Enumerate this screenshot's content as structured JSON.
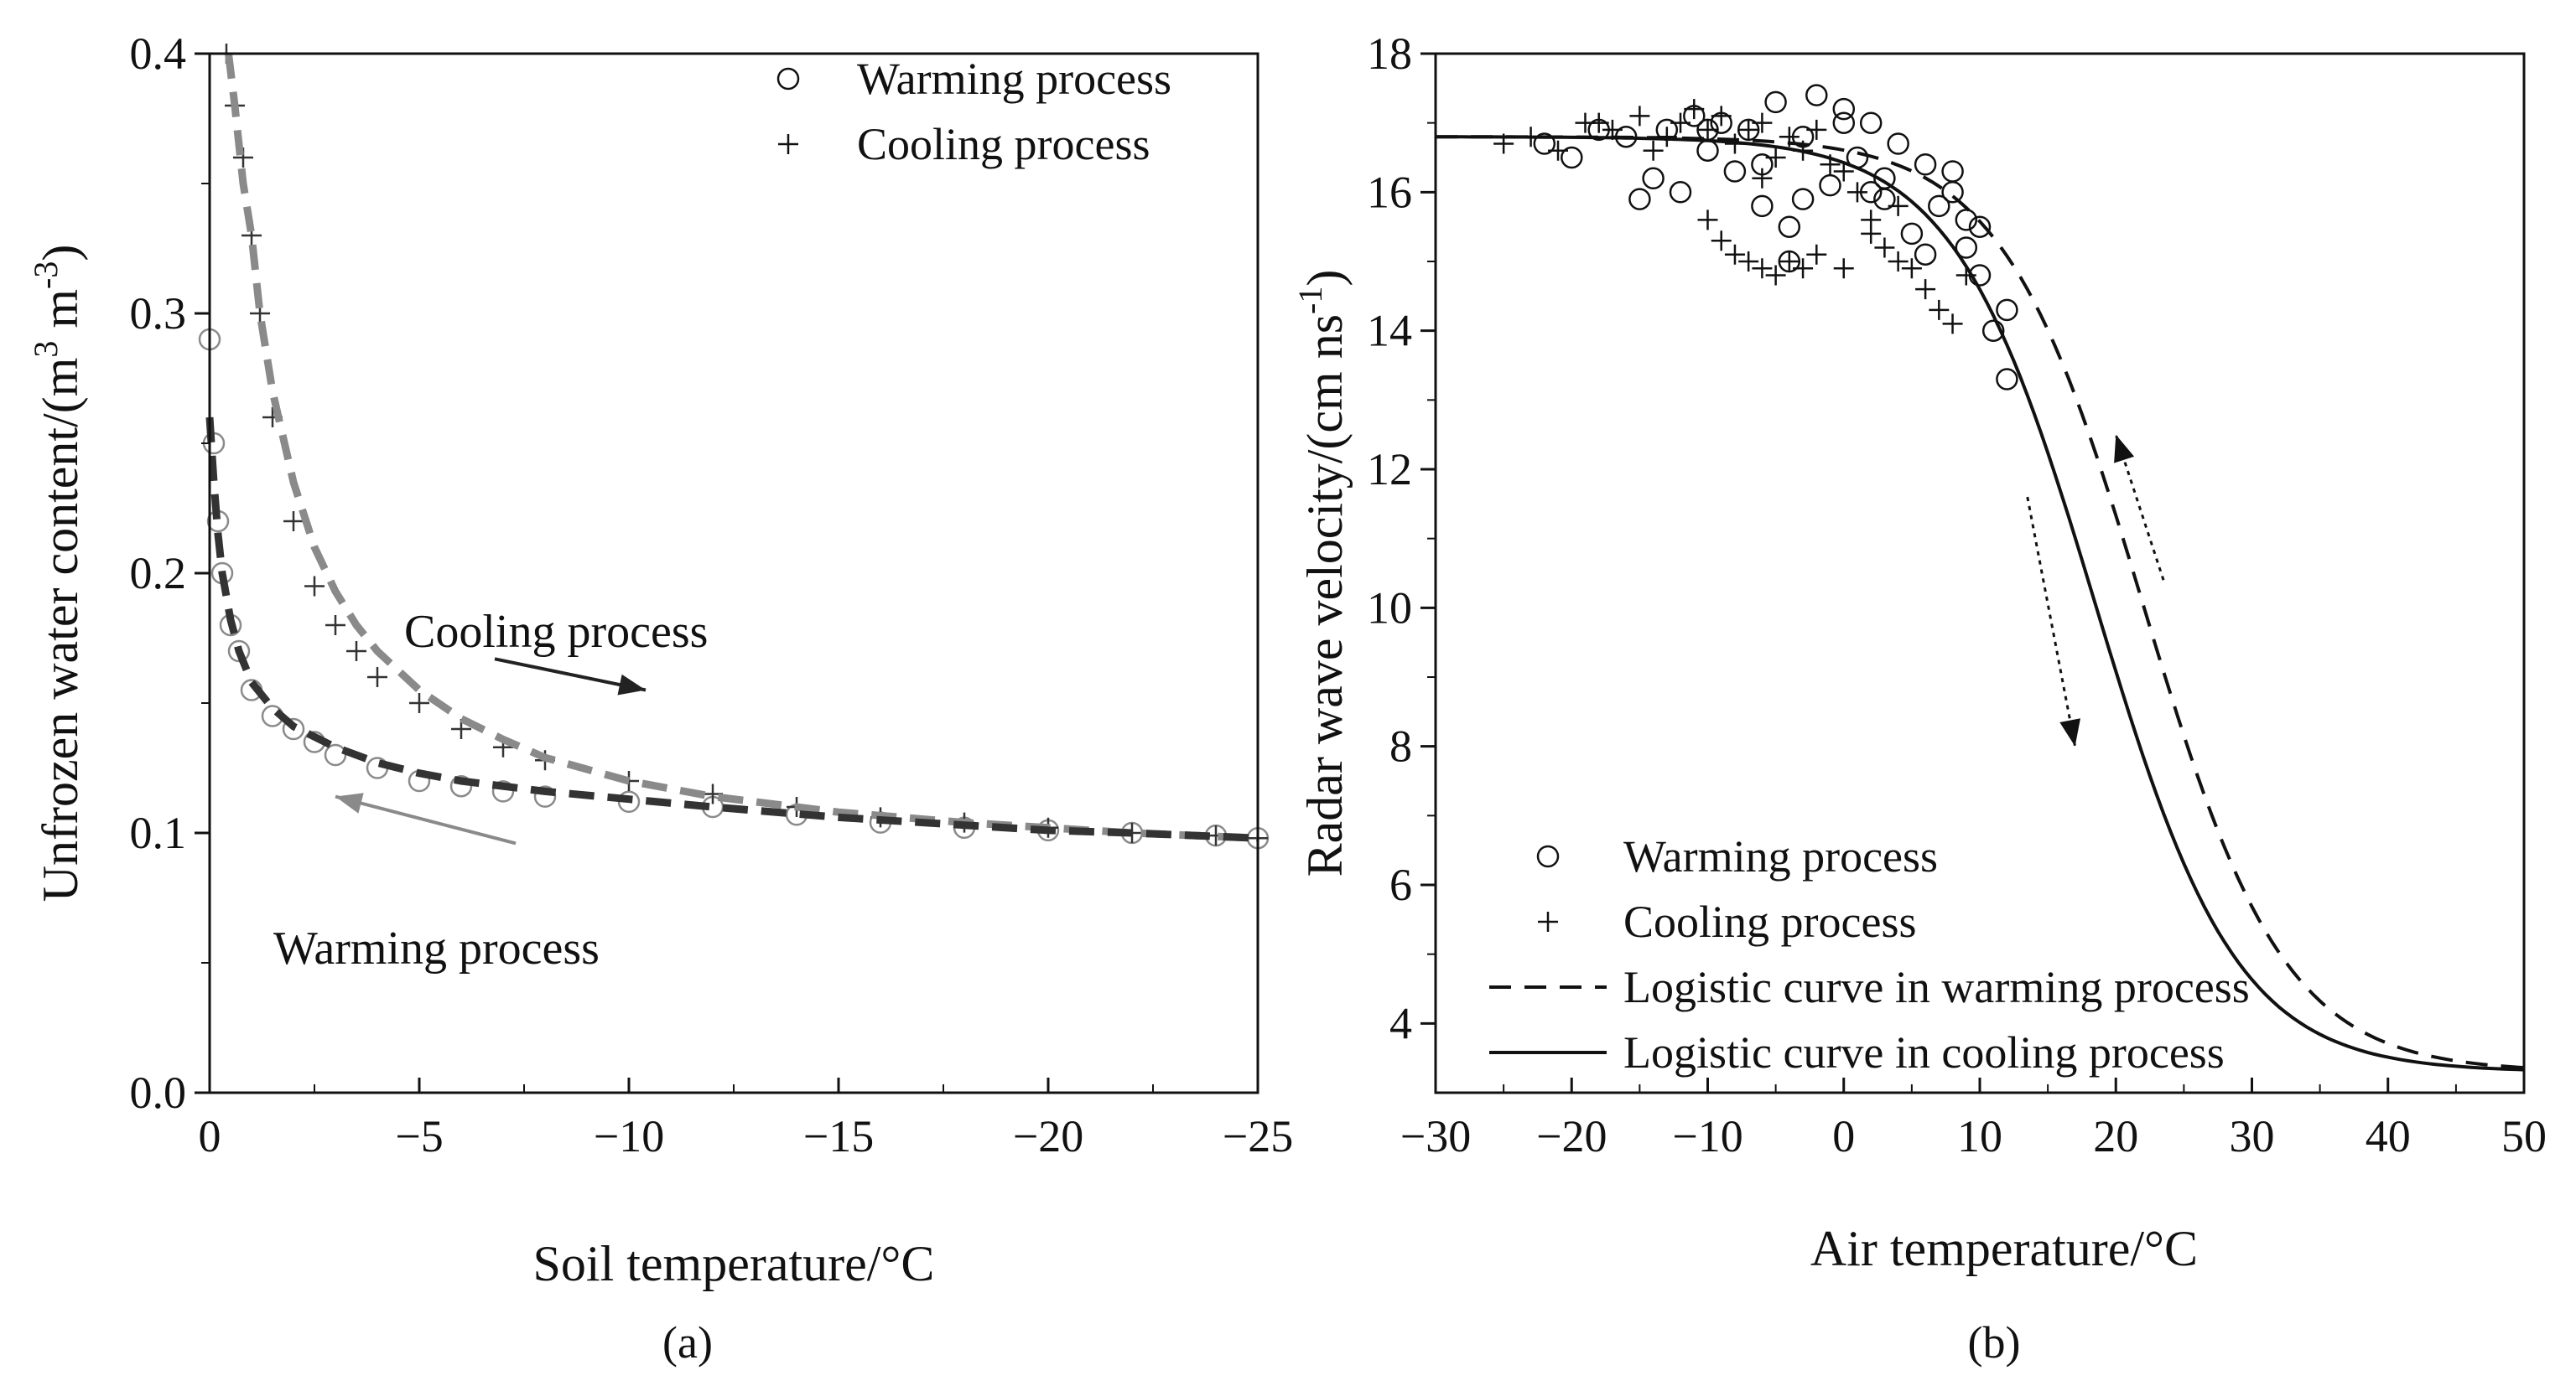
{
  "figure": {
    "background": "#ffffff",
    "ink": "#111111",
    "grey": "#8a8a8a",
    "dark_grey": "#444444"
  },
  "chart_data": [
    {
      "type": "scatter",
      "panel_label": "(a)",
      "xlabel": "Soil temperature/°C",
      "ylabel": "Unfrozen water content/(m³ m⁻³)",
      "ylabel_parts": [
        "Unfrozen water content/(m",
        "3",
        " m",
        "-3",
        ")"
      ],
      "xlim": [
        0,
        -25
      ],
      "ylim": [
        0.0,
        0.4
      ],
      "xticks": [
        0,
        -5,
        -10,
        -15,
        -20,
        -25
      ],
      "xtick_labels": [
        "0",
        "−5",
        "−10",
        "−15",
        "−20",
        "−25"
      ],
      "yticks": [
        0.0,
        0.1,
        0.2,
        0.3,
        0.4
      ],
      "ytick_labels": [
        "0.0",
        "0.1",
        "0.2",
        "0.3",
        "0.4"
      ],
      "legend": [
        {
          "marker": "circle",
          "label": "Warming process"
        },
        {
          "marker": "plus",
          "label": "Cooling process"
        }
      ],
      "annotations": [
        {
          "text": "Cooling process",
          "x": -9.3,
          "y": 0.178,
          "arrow_from": [
            -6.8,
            0.167
          ],
          "arrow_to": [
            -10.4,
            0.155
          ],
          "color": "#222222"
        },
        {
          "text": "Warming process",
          "x": -6.5,
          "y": 0.058,
          "arrow_from": [
            -7.3,
            0.096
          ],
          "arrow_to": [
            -3.0,
            0.114
          ],
          "color": "#8a8a8a"
        }
      ],
      "series": [
        {
          "name": "Warming process (observed)",
          "marker": "circle",
          "color": "#8a8a8a",
          "x": [
            0.0,
            -0.1,
            -0.2,
            -0.3,
            -0.5,
            -0.7,
            -1.0,
            -1.5,
            -2.0,
            -2.5,
            -3.0,
            -4.0,
            -5.0,
            -6.0,
            -7.0,
            -8.0,
            -10.0,
            -12.0,
            -14.0,
            -16.0,
            -18.0,
            -20.0,
            -22.0,
            -24.0,
            -25.0
          ],
          "y": [
            0.29,
            0.25,
            0.22,
            0.2,
            0.18,
            0.17,
            0.155,
            0.145,
            0.14,
            0.135,
            0.13,
            0.125,
            0.12,
            0.118,
            0.116,
            0.114,
            0.112,
            0.11,
            0.107,
            0.104,
            0.102,
            0.101,
            0.1,
            0.099,
            0.098
          ]
        },
        {
          "name": "Cooling process (observed)",
          "marker": "plus",
          "color": "#333333",
          "x": [
            -0.4,
            -0.6,
            -0.8,
            -1.0,
            -1.2,
            -1.5,
            -2.0,
            -2.5,
            -3.0,
            -3.5,
            -4.0,
            -5.0,
            -6.0,
            -7.0,
            -8.0,
            -10.0,
            -12.0,
            -14.0,
            -16.0,
            -18.0,
            -20.0,
            -22.0,
            -24.0,
            -25.0
          ],
          "y": [
            0.4,
            0.38,
            0.36,
            0.33,
            0.3,
            0.26,
            0.22,
            0.195,
            0.18,
            0.17,
            0.16,
            0.15,
            0.14,
            0.133,
            0.128,
            0.12,
            0.115,
            0.11,
            0.106,
            0.104,
            0.102,
            0.1,
            0.099,
            0.098
          ]
        },
        {
          "name": "Cooling fit",
          "style": "dashed",
          "color": "#8a8a8a",
          "x": [
            -0.45,
            -0.6,
            -0.8,
            -1.0,
            -1.2,
            -1.5,
            -2.0,
            -2.5,
            -3.0,
            -3.5,
            -4.0,
            -5.0,
            -6.0,
            -7.0,
            -8.0,
            -10.0,
            -12.0,
            -15.0,
            -18.0,
            -20.0,
            -22.0,
            -25.0
          ],
          "y": [
            0.4,
            0.38,
            0.35,
            0.33,
            0.3,
            0.27,
            0.235,
            0.21,
            0.193,
            0.18,
            0.17,
            0.155,
            0.144,
            0.136,
            0.129,
            0.12,
            0.114,
            0.108,
            0.104,
            0.102,
            0.1,
            0.098
          ]
        },
        {
          "name": "Warming fit",
          "style": "dashed",
          "color": "#333333",
          "x": [
            0.0,
            -0.1,
            -0.2,
            -0.3,
            -0.5,
            -0.7,
            -1.0,
            -1.5,
            -2.0,
            -3.0,
            -4.0,
            -5.0,
            -6.0,
            -8.0,
            -10.0,
            -12.0,
            -15.0,
            -18.0,
            -20.0,
            -22.0,
            -25.0
          ],
          "y": [
            0.26,
            0.235,
            0.215,
            0.2,
            0.182,
            0.17,
            0.158,
            0.148,
            0.141,
            0.133,
            0.127,
            0.123,
            0.12,
            0.116,
            0.113,
            0.11,
            0.106,
            0.103,
            0.101,
            0.1,
            0.098
          ]
        }
      ]
    },
    {
      "type": "scatter",
      "panel_label": "(b)",
      "xlabel": "Air temperature/°C",
      "ylabel": "Radar wave velocity/(cm ns⁻¹)",
      "ylabel_parts": [
        "Radar wave velocity/(cm ns",
        "-1",
        ")"
      ],
      "xlim": [
        -30,
        50
      ],
      "ylim": [
        3,
        18
      ],
      "xticks": [
        -30,
        -20,
        -10,
        0,
        10,
        20,
        30,
        40,
        50
      ],
      "xtick_labels": [
        "−30",
        "−20",
        "−10",
        "0",
        "10",
        "20",
        "30",
        "40",
        "50"
      ],
      "yticks": [
        4,
        6,
        8,
        10,
        12,
        14,
        16,
        18
      ],
      "ytick_labels": [
        "4",
        "6",
        "8",
        "10",
        "12",
        "14",
        "16",
        "18"
      ],
      "legend": [
        {
          "marker": "circle",
          "label": "Warming process"
        },
        {
          "marker": "plus",
          "label": "Cooling process"
        },
        {
          "marker": "dashed-line",
          "label": "Logistic curve in warming process"
        },
        {
          "marker": "solid-line",
          "label": "Logistic curve in cooling process"
        }
      ],
      "annotations": [
        {
          "arrow_from": [
            13.5,
            11.6
          ],
          "arrow_to": [
            17.0,
            8.0
          ],
          "style": "dotted",
          "direction": "down"
        },
        {
          "arrow_from": [
            23.5,
            10.4
          ],
          "arrow_to": [
            20.0,
            12.5
          ],
          "style": "dotted",
          "direction": "up"
        }
      ],
      "series": [
        {
          "name": "Warming process",
          "marker": "circle",
          "color": "#111111",
          "x": [
            -22,
            -20,
            -18,
            -16,
            -14,
            -13,
            -12,
            -11,
            -10,
            -9,
            -8,
            -7,
            -6,
            -5,
            -4,
            -3,
            -2,
            -1,
            0,
            1,
            2,
            3,
            4,
            5,
            6,
            7,
            8,
            9,
            10,
            11,
            12,
            -15,
            -10,
            -6,
            -3,
            0,
            3,
            6,
            9,
            12,
            -4,
            2,
            8,
            10
          ],
          "y": [
            16.7,
            16.5,
            16.9,
            16.8,
            16.2,
            16.9,
            16.0,
            17.1,
            16.6,
            17.0,
            16.3,
            16.9,
            15.8,
            17.3,
            15.5,
            16.8,
            17.4,
            16.1,
            17.2,
            16.5,
            17.0,
            15.9,
            16.7,
            15.4,
            16.4,
            15.8,
            16.0,
            15.2,
            14.8,
            14.0,
            13.3,
            15.9,
            16.9,
            16.4,
            15.9,
            17.0,
            16.2,
            15.1,
            15.6,
            14.3,
            15.0,
            16.0,
            16.3,
            15.5
          ]
        },
        {
          "name": "Cooling process",
          "marker": "plus",
          "color": "#111111",
          "x": [
            -25,
            -23,
            -21,
            -19,
            -17,
            -15,
            -13,
            -12,
            -11,
            -10,
            -9,
            -8,
            -7,
            -6,
            -5,
            -4,
            -3,
            -2,
            -1,
            0,
            1,
            2,
            3,
            4,
            5,
            6,
            7,
            8,
            9,
            -10,
            -9,
            -8,
            -7,
            -6,
            -5,
            -4,
            -3,
            -2,
            0,
            2,
            -18,
            -14,
            -6,
            4
          ],
          "y": [
            16.7,
            16.8,
            16.6,
            17.0,
            16.9,
            17.1,
            16.8,
            17.0,
            17.2,
            16.9,
            17.1,
            16.7,
            16.9,
            17.0,
            16.5,
            16.8,
            16.6,
            16.9,
            16.4,
            16.3,
            16.0,
            15.6,
            15.2,
            15.0,
            14.9,
            14.6,
            14.3,
            14.1,
            14.8,
            15.6,
            15.3,
            15.1,
            15.0,
            14.9,
            14.8,
            15.0,
            14.9,
            15.1,
            14.9,
            15.4,
            17.0,
            16.6,
            16.2,
            15.8
          ]
        },
        {
          "name": "Logistic curve in warming process",
          "style": "dashed",
          "color": "#111111",
          "logistic": {
            "A1": 16.8,
            "A2": 3.3,
            "x0": 22.0,
            "dx": 5.2
          }
        },
        {
          "name": "Logistic curve in cooling process",
          "style": "solid",
          "color": "#111111",
          "logistic": {
            "A1": 16.8,
            "A2": 3.3,
            "x0": 18.5,
            "dx": 5.2
          }
        }
      ]
    }
  ]
}
